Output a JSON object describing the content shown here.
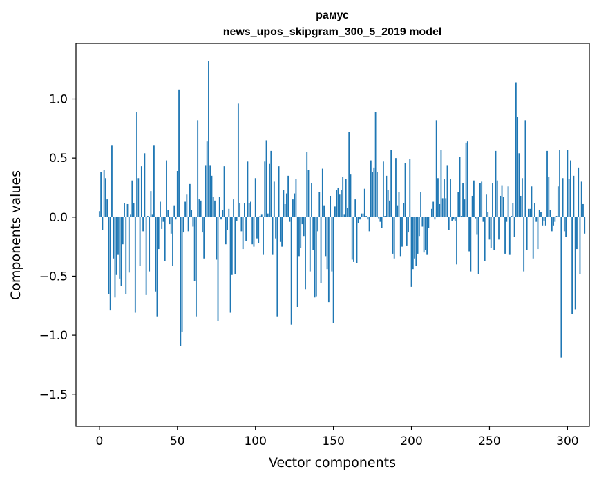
{
  "chart_data": {
    "type": "bar",
    "title": "рамус",
    "subtitle": "news_upos_skipgram_300_5_2019 model",
    "xlabel": "Vector components",
    "ylabel": "Components values",
    "xlim": [
      -15,
      314
    ],
    "ylim": [
      -1.77,
      1.47
    ],
    "xticks": [
      0,
      50,
      100,
      150,
      200,
      250,
      300
    ],
    "yticks": [
      -1.5,
      -1.0,
      -0.5,
      0.0,
      0.5,
      1.0
    ],
    "ytick_labels": [
      "−1.5",
      "−1.0",
      "−0.5",
      "0.0",
      "0.5",
      "1.0"
    ],
    "xtick_labels": [
      "0",
      "50",
      "100",
      "150",
      "200",
      "250",
      "300"
    ],
    "grid": false,
    "bar_color": "#1f77b4",
    "values": [
      0.05,
      0.38,
      -0.11,
      0.4,
      0.33,
      0.15,
      -0.65,
      -0.79,
      0.61,
      -0.35,
      -0.68,
      -0.49,
      -0.32,
      -0.52,
      -0.58,
      -0.23,
      0.12,
      -0.65,
      0.11,
      -0.47,
      0.02,
      0.31,
      0.12,
      -0.81,
      0.89,
      0.33,
      -0.41,
      0.43,
      -0.12,
      0.54,
      -0.66,
      0.01,
      -0.46,
      0.22,
      0.02,
      0.61,
      -0.63,
      -0.84,
      -0.27,
      0.13,
      -0.1,
      -0.04,
      -0.37,
      0.48,
      0.06,
      -0.06,
      -0.14,
      -0.41,
      0.1,
      -0.02,
      0.39,
      1.08,
      -1.09,
      -0.97,
      -0.13,
      0.13,
      0.19,
      -0.12,
      0.28,
      0.06,
      -0.08,
      -0.54,
      -0.84,
      0.82,
      0.15,
      0.14,
      -0.13,
      -0.35,
      0.44,
      0.64,
      1.32,
      0.44,
      0.35,
      0.17,
      0.14,
      -0.36,
      -0.88,
      0.17,
      -0.02,
      0.06,
      0.43,
      -0.23,
      -0.11,
      0.07,
      -0.81,
      -0.49,
      0.15,
      -0.48,
      -0.03,
      0.96,
      0.12,
      -0.12,
      -0.27,
      0.12,
      -0.2,
      0.47,
      0.12,
      0.13,
      -0.23,
      -0.25,
      0.33,
      -0.18,
      -0.22,
      0.01,
      0.02,
      -0.32,
      0.47,
      0.65,
      0.03,
      0.45,
      0.56,
      -0.32,
      0.3,
      -0.18,
      -0.84,
      0.43,
      -0.21,
      -0.25,
      0.23,
      0.11,
      0.2,
      0.35,
      -0.04,
      -0.91,
      0.15,
      0.2,
      0.32,
      -0.76,
      -0.33,
      -0.26,
      -0.06,
      -0.16,
      -0.61,
      0.55,
      0.4,
      -0.46,
      0.29,
      -0.28,
      -0.68,
      -0.67,
      -0.12,
      0.21,
      -0.56,
      0.41,
      0.1,
      -0.33,
      -0.44,
      -0.72,
      0.18,
      -0.46,
      -0.9,
      0.09,
      0.23,
      0.25,
      0.19,
      0.23,
      0.34,
      0.02,
      0.32,
      0.08,
      0.72,
      0.36,
      -0.36,
      -0.38,
      0.15,
      -0.39,
      -0.05,
      -0.02,
      0.03,
      0.03,
      0.24,
      0.01,
      -0.02,
      -0.12,
      0.48,
      0.38,
      0.42,
      0.89,
      0.38,
      -0.01,
      -0.04,
      -0.09,
      0.47,
      0.01,
      0.35,
      0.23,
      0.14,
      0.57,
      -0.31,
      -0.35,
      0.5,
      0.1,
      0.21,
      -0.33,
      -0.25,
      0.12,
      0.46,
      -0.24,
      -0.13,
      0.49,
      -0.59,
      -0.44,
      -0.35,
      -0.41,
      -0.31,
      -0.16,
      0.21,
      -0.08,
      -0.3,
      -0.28,
      -0.32,
      -0.09,
      0.0,
      0.07,
      0.13,
      -0.02,
      0.82,
      0.33,
      0.11,
      0.57,
      0.16,
      0.32,
      0.16,
      0.44,
      -0.11,
      0.32,
      -0.03,
      -0.02,
      -0.03,
      -0.4,
      0.21,
      0.51,
      0.01,
      0.29,
      0.15,
      0.63,
      0.64,
      -0.29,
      -0.46,
      0.18,
      0.31,
      -0.01,
      -0.15,
      -0.48,
      0.29,
      0.3,
      -0.04,
      -0.37,
      0.19,
      0.04,
      -0.19,
      -0.26,
      0.29,
      -0.28,
      0.56,
      0.31,
      -0.19,
      0.18,
      0.27,
      0.17,
      -0.31,
      -0.04,
      0.26,
      -0.32,
      0.01,
      0.12,
      -0.17,
      1.14,
      0.85,
      0.54,
      0.18,
      0.33,
      -0.46,
      0.82,
      -0.28,
      0.07,
      0.07,
      0.26,
      -0.35,
      0.12,
      -0.04,
      -0.27,
      0.06,
      0.04,
      -0.07,
      -0.03,
      -0.07,
      0.56,
      0.34,
      0.06,
      -0.12,
      -0.07,
      -0.04,
      0.01,
      0.26,
      0.57,
      -1.19,
      0.33,
      -0.12,
      -0.17,
      0.57,
      0.32,
      0.48,
      -0.82,
      0.35,
      -0.78,
      -0.27,
      0.42,
      -0.48,
      0.3,
      0.11,
      -0.14
    ]
  }
}
